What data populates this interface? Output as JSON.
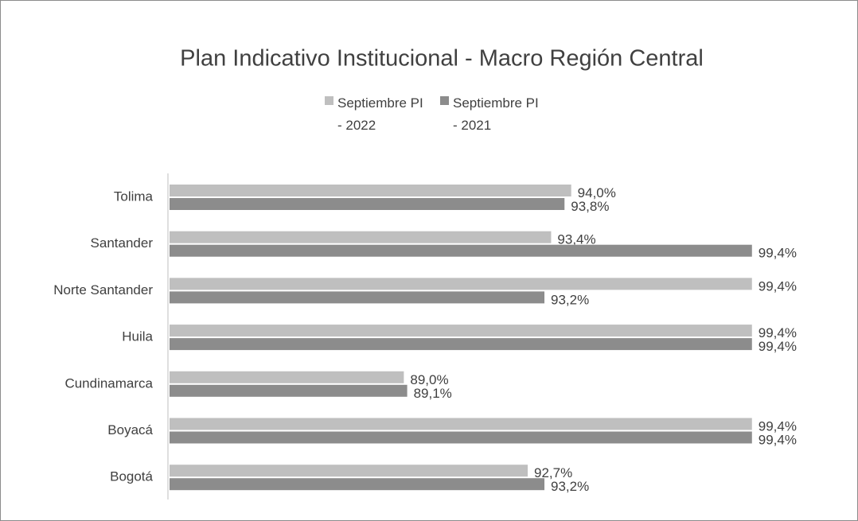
{
  "chart_data": {
    "type": "bar",
    "orientation": "horizontal",
    "title": "Plan Indicativo Institucional - Macro Región Central",
    "categories": [
      "Tolima",
      "Santander",
      "Norte Santander",
      "Huila",
      "Cundinamarca",
      "Boyacá",
      "Bogotá"
    ],
    "series": [
      {
        "name": "Septiembre PI - 2022",
        "color": "#bfbfbf",
        "values": [
          94.0,
          93.4,
          99.4,
          99.4,
          89.0,
          99.4,
          92.7
        ],
        "value_labels": [
          "94,0%",
          "93,4%",
          "99,4%",
          "99,4%",
          "89,0%",
          "99,4%",
          "92,7%"
        ]
      },
      {
        "name": "Septiembre PI - 2021",
        "color": "#8c8c8c",
        "values": [
          93.8,
          99.4,
          93.2,
          99.4,
          89.1,
          99.4,
          93.2
        ],
        "value_labels": [
          "93,8%",
          "99,4%",
          "93,2%",
          "99,4%",
          "89,1%",
          "99,4%",
          "93,2%"
        ]
      }
    ],
    "xlim": [
      82,
      100
    ],
    "legend": "top"
  }
}
